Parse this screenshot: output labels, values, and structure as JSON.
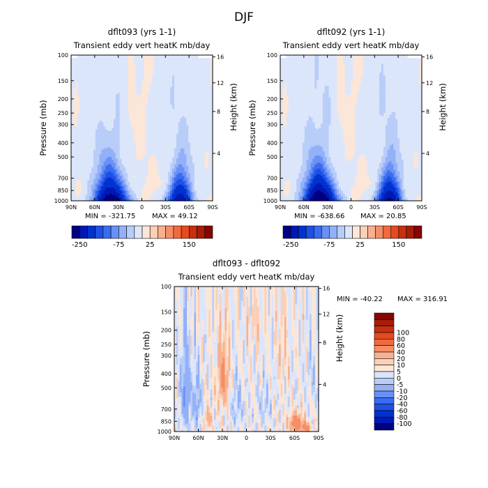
{
  "title": "DJF",
  "colors": {
    "neg": [
      "#000082",
      "#0019b3",
      "#0032d0",
      "#1f4fe4",
      "#3a6cf0",
      "#6a90f5",
      "#93b1f7",
      "#b9cdf9",
      "#dce6fb"
    ],
    "pos": [
      "#fbe6d8",
      "#fbd0b6",
      "#f8b08e",
      "#f58e66",
      "#f06a3d",
      "#e64a1e",
      "#c72f10",
      "#a81d08",
      "#850500"
    ]
  },
  "chart_data": [
    {
      "type": "heatmap",
      "title": "dflt093 (yrs 1-1)",
      "subtitle": "Transient eddy vert heatK mb/day",
      "ylabel": "Pressure (mb)",
      "ylabel_right": "Height (km)",
      "x_ticks": [
        "90N",
        "60N",
        "30N",
        "0",
        "30S",
        "60S",
        "90S"
      ],
      "x_range": [
        90,
        -90
      ],
      "y_ticks": [
        "100",
        "150",
        "200",
        "250",
        "300",
        "400",
        "500",
        "700",
        "850",
        "1000"
      ],
      "y_ticks_right": [
        "16",
        "12",
        "8",
        "4"
      ],
      "y_range_mb": [
        100,
        1000
      ],
      "min_label": "MIN = -321.75",
      "max_label": "MAX = 49.12",
      "min": -321.75,
      "max": 49.12,
      "colorbar": {
        "orientation": "horizontal",
        "levels": [
          -300,
          -250,
          -200,
          -150,
          -125,
          -100,
          -75,
          -50,
          -25,
          0,
          25,
          50,
          75,
          100,
          125,
          150,
          200,
          250,
          300
        ],
        "tick_labels": [
          "-250",
          "-75",
          "25",
          "150"
        ]
      }
    },
    {
      "type": "heatmap",
      "title": "dflt092 (yrs 1-1)",
      "subtitle": "Transient eddy vert heatK mb/day",
      "ylabel": "Pressure (mb)",
      "ylabel_right": "Height (km)",
      "x_ticks": [
        "90N",
        "60N",
        "30N",
        "0",
        "30S",
        "60S",
        "90S"
      ],
      "x_range": [
        90,
        -90
      ],
      "y_ticks": [
        "100",
        "150",
        "200",
        "250",
        "300",
        "400",
        "500",
        "700",
        "850",
        "1000"
      ],
      "y_ticks_right": [
        "16",
        "12",
        "8",
        "4"
      ],
      "y_range_mb": [
        100,
        1000
      ],
      "min_label": "MIN = -638.66",
      "max_label": "MAX = 20.85",
      "min": -638.66,
      "max": 20.85,
      "colorbar": {
        "orientation": "horizontal",
        "levels": [
          -300,
          -250,
          -200,
          -150,
          -125,
          -100,
          -75,
          -50,
          -25,
          0,
          25,
          50,
          75,
          100,
          125,
          150,
          200,
          250,
          300
        ],
        "tick_labels": [
          "-250",
          "-75",
          "25",
          "150"
        ]
      }
    },
    {
      "type": "heatmap",
      "title": "dflt093 - dflt092",
      "subtitle": "Transient eddy vert heatK mb/day",
      "ylabel": "Pressure (mb)",
      "ylabel_right": "Height (km)",
      "x_ticks": [
        "90N",
        "60N",
        "30N",
        "0",
        "30S",
        "60S",
        "90S"
      ],
      "x_range": [
        90,
        -90
      ],
      "y_ticks": [
        "100",
        "150",
        "200",
        "250",
        "300",
        "400",
        "500",
        "700",
        "850",
        "1000"
      ],
      "y_ticks_right": [
        "16",
        "12",
        "8",
        "4"
      ],
      "y_range_mb": [
        100,
        1000
      ],
      "min_label": "MIN = -40.22",
      "max_label": "MAX = 316.91",
      "min": -40.22,
      "max": 316.91,
      "colorbar": {
        "orientation": "vertical",
        "levels": [
          -120,
          -100,
          -80,
          -60,
          -40,
          -20,
          -10,
          -5,
          0,
          5,
          10,
          20,
          40,
          60,
          80,
          100,
          120
        ],
        "tick_labels": [
          "100",
          "80",
          "60",
          "40",
          "20",
          "10",
          "5",
          "0",
          "-5",
          "-10",
          "-20",
          "-40",
          "-60",
          "-80",
          "-100"
        ]
      }
    }
  ]
}
